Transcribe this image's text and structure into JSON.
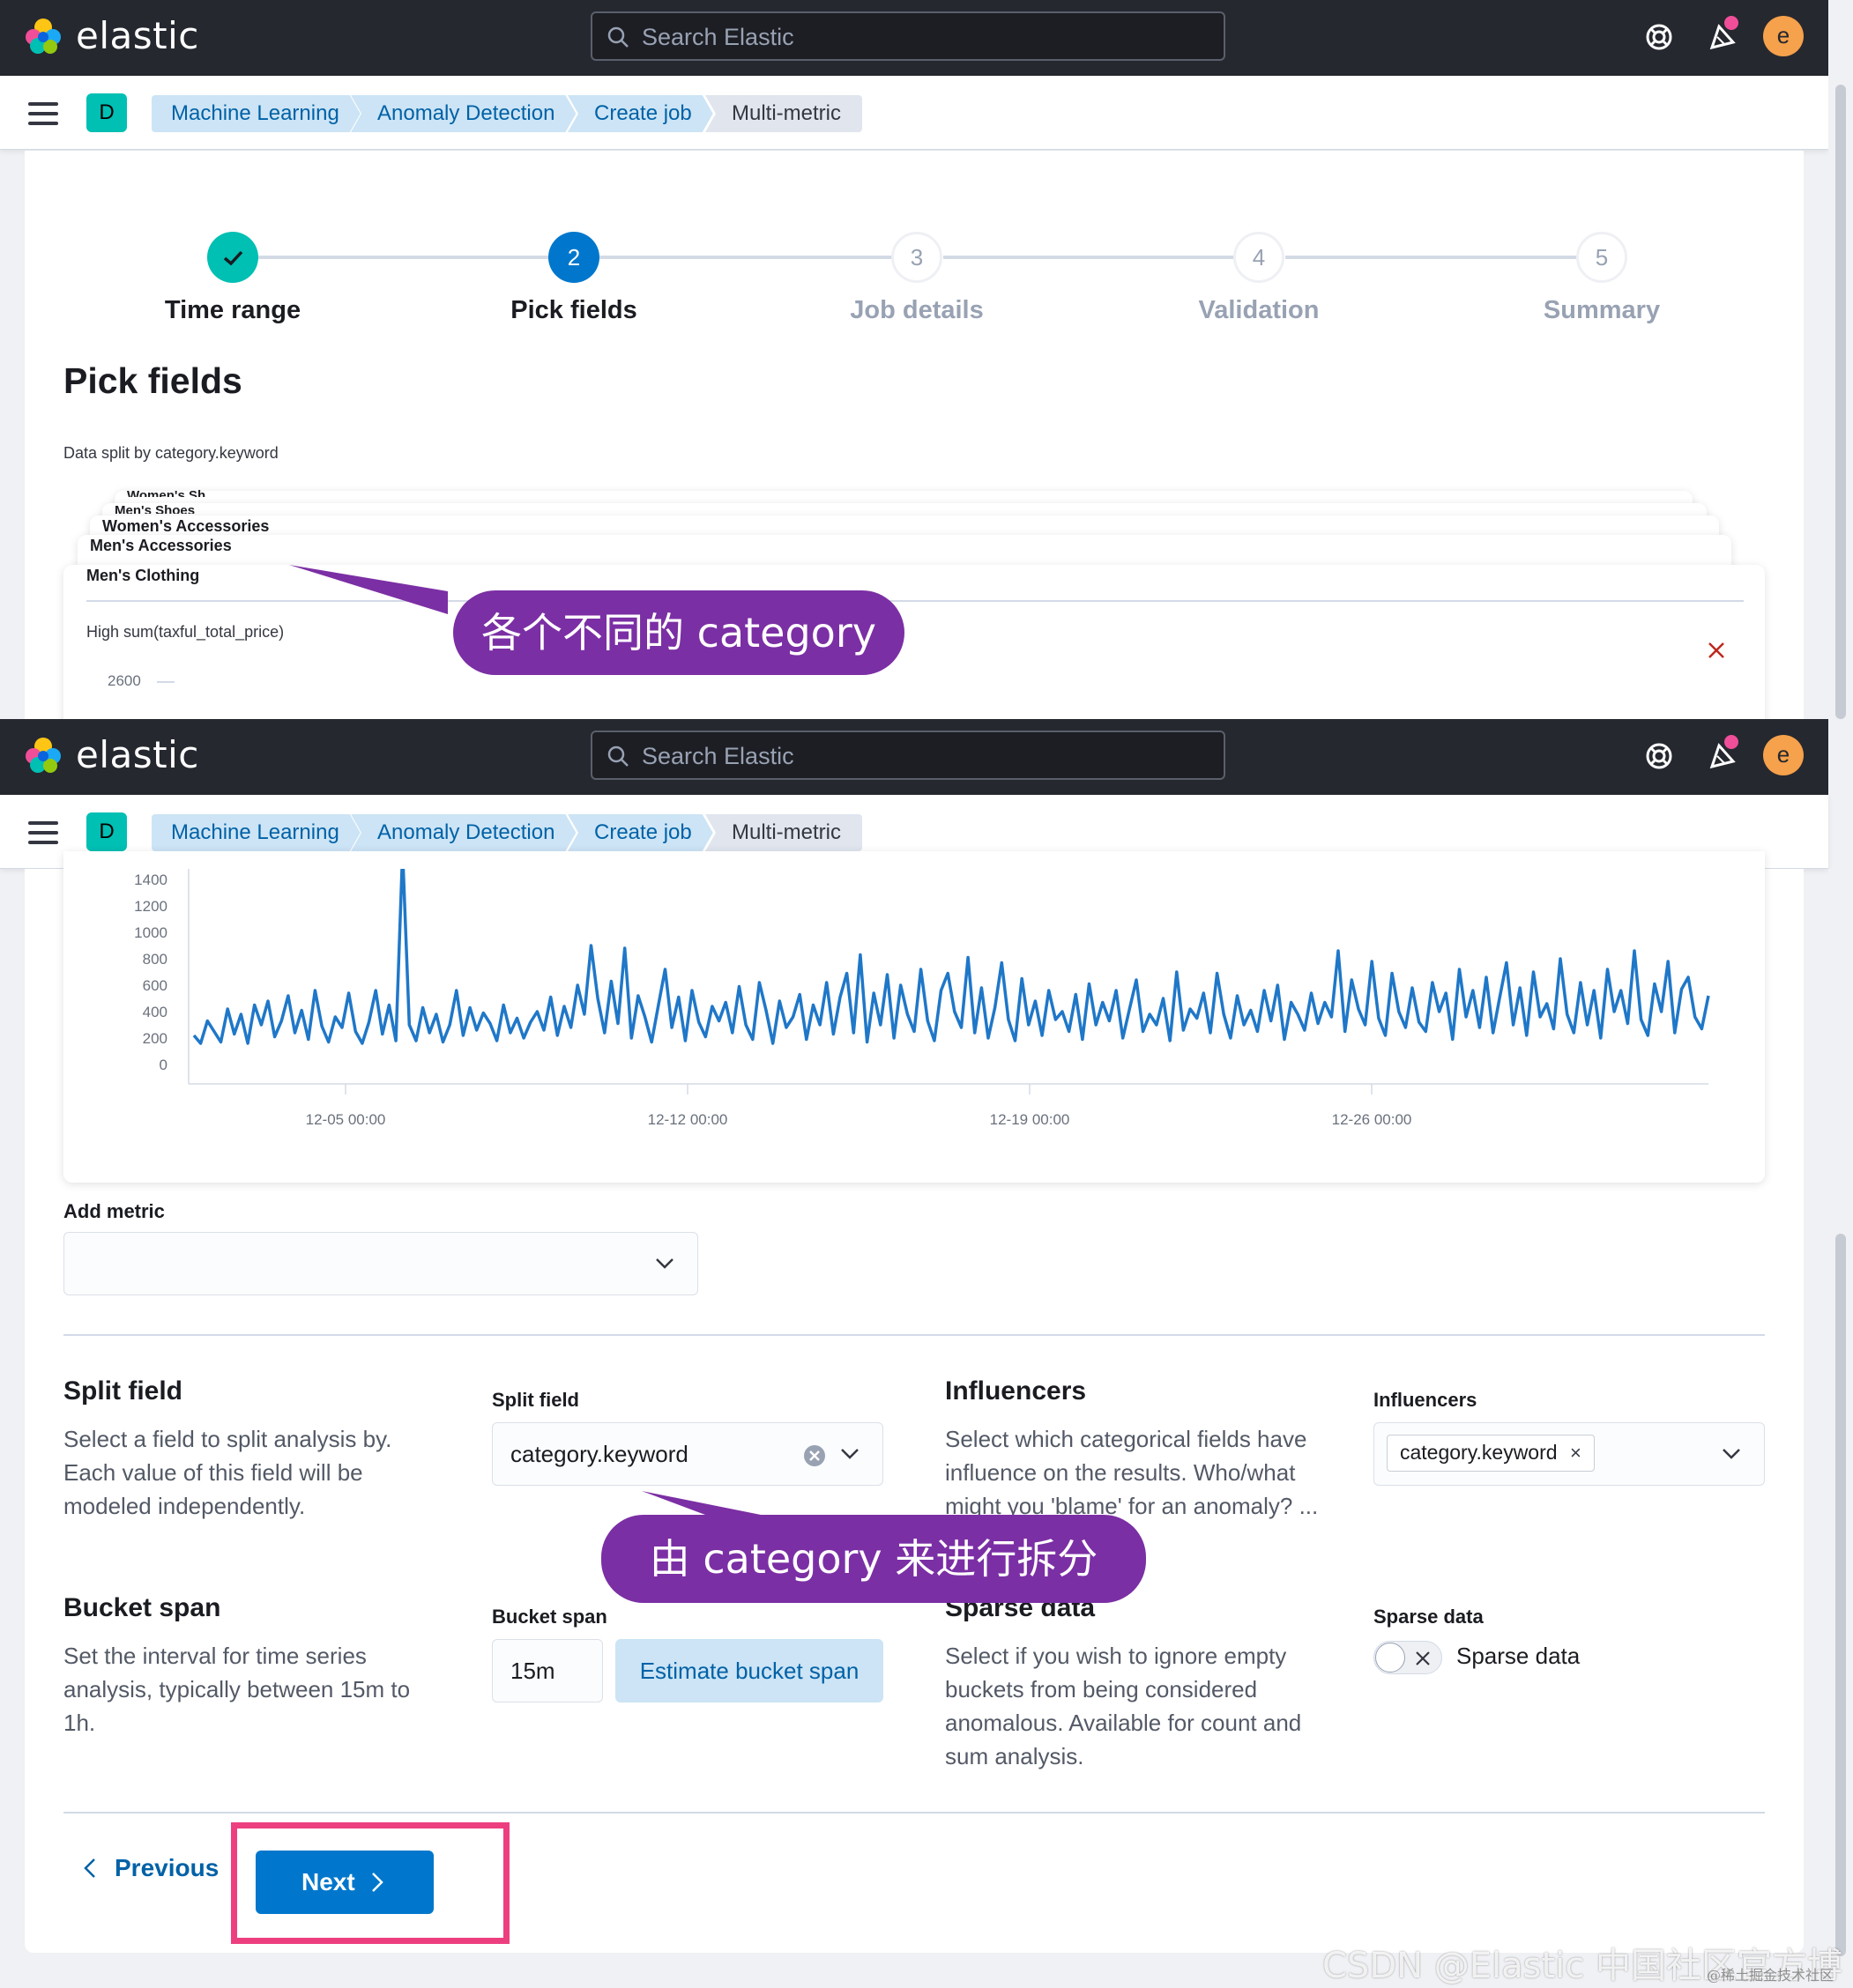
{
  "header": {
    "brand": "elastic",
    "search_placeholder": "Search Elastic",
    "avatar_letter": "e"
  },
  "nav": {
    "space_letter": "D",
    "breadcrumbs": [
      "Machine Learning",
      "Anomaly Detection",
      "Create job",
      "Multi-metric"
    ]
  },
  "stepper": {
    "steps": [
      {
        "number": "1",
        "label": "Time range",
        "state": "complete"
      },
      {
        "number": "2",
        "label": "Pick fields",
        "state": "current"
      },
      {
        "number": "3",
        "label": "Job details",
        "state": "incomplete"
      },
      {
        "number": "4",
        "label": "Validation",
        "state": "incomplete"
      },
      {
        "number": "5",
        "label": "Summary",
        "state": "incomplete"
      }
    ]
  },
  "page": {
    "title": "Pick fields",
    "split_caption": "Data split by category.keyword",
    "stacked_cards": [
      "Women's Sh...",
      "Men's Shoes",
      "Women's Accessories",
      "Men's Accessories",
      "Men's Clothing"
    ],
    "chart_title": "High sum(taxful_total_price)"
  },
  "annotations": {
    "top": "各个不同的 category",
    "bottom": "由 category 来进行拆分"
  },
  "chart_data": {
    "type": "line",
    "title": "High sum(taxful_total_price)",
    "series_label": "Men's Clothing",
    "ylim": [
      0,
      2600
    ],
    "y_ticks": [
      "2600",
      "1400",
      "1200",
      "1000",
      "800",
      "600",
      "400",
      "200",
      "0"
    ],
    "x_ticks": [
      "12-05 00:00",
      "12-12 00:00",
      "12-19 00:00",
      "12-26 00:00"
    ],
    "color": "#1f77c8",
    "values": [
      220,
      160,
      330,
      250,
      170,
      420,
      230,
      380,
      160,
      450,
      300,
      480,
      210,
      330,
      520,
      240,
      410,
      190,
      560,
      290,
      170,
      360,
      280,
      540,
      250,
      160,
      320,
      560,
      230,
      450,
      180,
      2900,
      300,
      180,
      430,
      240,
      380,
      170,
      300,
      560,
      220,
      430,
      260,
      390,
      310,
      180,
      450,
      240,
      350,
      200,
      320,
      400,
      260,
      510,
      220,
      440,
      280,
      600,
      380,
      900,
      500,
      240,
      630,
      310,
      880,
      200,
      520,
      360,
      170,
      450,
      720,
      280,
      510,
      180,
      560,
      320,
      210,
      440,
      330,
      470,
      240,
      590,
      300,
      190,
      620,
      410,
      160,
      480,
      280,
      360,
      530,
      190,
      450,
      300,
      620,
      230,
      510,
      690,
      240,
      830,
      170,
      540,
      300,
      680,
      200,
      600,
      380,
      250,
      720,
      330,
      180,
      560,
      690,
      400,
      280,
      810,
      240,
      580,
      200,
      430,
      770,
      340,
      180,
      650,
      300,
      480,
      220,
      560,
      340,
      400,
      250,
      530,
      190,
      610,
      300,
      470,
      330,
      560,
      200,
      420,
      640,
      250,
      380,
      300,
      500,
      180,
      700,
      260,
      420,
      350,
      540,
      240,
      690,
      380,
      200,
      520,
      300,
      410,
      250,
      560,
      330,
      600,
      190,
      470,
      380,
      260,
      540,
      310,
      470,
      360,
      860,
      250,
      640,
      420,
      300,
      780,
      350,
      220,
      690,
      400,
      280,
      580,
      320,
      250,
      620,
      400,
      540,
      190,
      720,
      360,
      560,
      280,
      660,
      240,
      510,
      770,
      300,
      580,
      220,
      700,
      360,
      460,
      270,
      800,
      380,
      240,
      620,
      300,
      560,
      200,
      720,
      400,
      560,
      310,
      860,
      340,
      220,
      610,
      400,
      780,
      240,
      570,
      660,
      360,
      270,
      520
    ]
  },
  "add_metric": {
    "label": "Add metric",
    "value": ""
  },
  "split_field": {
    "title": "Split field",
    "description": "Select a field to split analysis by. Each value of this field will be modeled independently.",
    "label": "Split field",
    "value": "category.keyword"
  },
  "influencers": {
    "title": "Influencers",
    "description": "Select which categorical fields have influence on the results. Who/what might you 'blame' for an anomaly? ... fluencers.",
    "label": "Influencers",
    "selected": "category.keyword"
  },
  "bucket_span": {
    "title": "Bucket span",
    "description": "Set the interval for time series analysis, typically between 15m to 1h.",
    "label": "Bucket span",
    "value": "15m",
    "estimate_button": "Estimate bucket span"
  },
  "sparse_data": {
    "title": "Sparse data",
    "description": "Select if you wish to ignore empty buckets from being considered anomalous. Available for count and sum analysis.",
    "label": "Sparse data",
    "toggle_label": "Sparse data",
    "enabled": false
  },
  "footer": {
    "previous": "Previous",
    "next": "Next"
  },
  "watermark": {
    "main": "CSDN @Elastic 中国社区官方博客",
    "small": "@稀土掘金技术社区"
  }
}
